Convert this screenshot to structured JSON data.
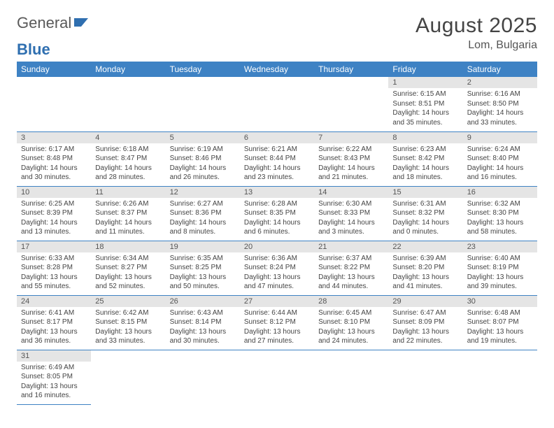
{
  "logo": {
    "part1": "General",
    "part2": "Blue"
  },
  "title": "August 2025",
  "location": "Lom, Bulgaria",
  "colors": {
    "header_bg": "#3e82c4",
    "daynum_bg": "#e5e5e5",
    "border": "#3e82c4"
  },
  "weekdays": [
    "Sunday",
    "Monday",
    "Tuesday",
    "Wednesday",
    "Thursday",
    "Friday",
    "Saturday"
  ],
  "weeks": [
    [
      null,
      null,
      null,
      null,
      null,
      {
        "n": "1",
        "sr": "Sunrise: 6:15 AM",
        "ss": "Sunset: 8:51 PM",
        "dl": "Daylight: 14 hours and 35 minutes."
      },
      {
        "n": "2",
        "sr": "Sunrise: 6:16 AM",
        "ss": "Sunset: 8:50 PM",
        "dl": "Daylight: 14 hours and 33 minutes."
      }
    ],
    [
      {
        "n": "3",
        "sr": "Sunrise: 6:17 AM",
        "ss": "Sunset: 8:48 PM",
        "dl": "Daylight: 14 hours and 30 minutes."
      },
      {
        "n": "4",
        "sr": "Sunrise: 6:18 AM",
        "ss": "Sunset: 8:47 PM",
        "dl": "Daylight: 14 hours and 28 minutes."
      },
      {
        "n": "5",
        "sr": "Sunrise: 6:19 AM",
        "ss": "Sunset: 8:46 PM",
        "dl": "Daylight: 14 hours and 26 minutes."
      },
      {
        "n": "6",
        "sr": "Sunrise: 6:21 AM",
        "ss": "Sunset: 8:44 PM",
        "dl": "Daylight: 14 hours and 23 minutes."
      },
      {
        "n": "7",
        "sr": "Sunrise: 6:22 AM",
        "ss": "Sunset: 8:43 PM",
        "dl": "Daylight: 14 hours and 21 minutes."
      },
      {
        "n": "8",
        "sr": "Sunrise: 6:23 AM",
        "ss": "Sunset: 8:42 PM",
        "dl": "Daylight: 14 hours and 18 minutes."
      },
      {
        "n": "9",
        "sr": "Sunrise: 6:24 AM",
        "ss": "Sunset: 8:40 PM",
        "dl": "Daylight: 14 hours and 16 minutes."
      }
    ],
    [
      {
        "n": "10",
        "sr": "Sunrise: 6:25 AM",
        "ss": "Sunset: 8:39 PM",
        "dl": "Daylight: 14 hours and 13 minutes."
      },
      {
        "n": "11",
        "sr": "Sunrise: 6:26 AM",
        "ss": "Sunset: 8:37 PM",
        "dl": "Daylight: 14 hours and 11 minutes."
      },
      {
        "n": "12",
        "sr": "Sunrise: 6:27 AM",
        "ss": "Sunset: 8:36 PM",
        "dl": "Daylight: 14 hours and 8 minutes."
      },
      {
        "n": "13",
        "sr": "Sunrise: 6:28 AM",
        "ss": "Sunset: 8:35 PM",
        "dl": "Daylight: 14 hours and 6 minutes."
      },
      {
        "n": "14",
        "sr": "Sunrise: 6:30 AM",
        "ss": "Sunset: 8:33 PM",
        "dl": "Daylight: 14 hours and 3 minutes."
      },
      {
        "n": "15",
        "sr": "Sunrise: 6:31 AM",
        "ss": "Sunset: 8:32 PM",
        "dl": "Daylight: 14 hours and 0 minutes."
      },
      {
        "n": "16",
        "sr": "Sunrise: 6:32 AM",
        "ss": "Sunset: 8:30 PM",
        "dl": "Daylight: 13 hours and 58 minutes."
      }
    ],
    [
      {
        "n": "17",
        "sr": "Sunrise: 6:33 AM",
        "ss": "Sunset: 8:28 PM",
        "dl": "Daylight: 13 hours and 55 minutes."
      },
      {
        "n": "18",
        "sr": "Sunrise: 6:34 AM",
        "ss": "Sunset: 8:27 PM",
        "dl": "Daylight: 13 hours and 52 minutes."
      },
      {
        "n": "19",
        "sr": "Sunrise: 6:35 AM",
        "ss": "Sunset: 8:25 PM",
        "dl": "Daylight: 13 hours and 50 minutes."
      },
      {
        "n": "20",
        "sr": "Sunrise: 6:36 AM",
        "ss": "Sunset: 8:24 PM",
        "dl": "Daylight: 13 hours and 47 minutes."
      },
      {
        "n": "21",
        "sr": "Sunrise: 6:37 AM",
        "ss": "Sunset: 8:22 PM",
        "dl": "Daylight: 13 hours and 44 minutes."
      },
      {
        "n": "22",
        "sr": "Sunrise: 6:39 AM",
        "ss": "Sunset: 8:20 PM",
        "dl": "Daylight: 13 hours and 41 minutes."
      },
      {
        "n": "23",
        "sr": "Sunrise: 6:40 AM",
        "ss": "Sunset: 8:19 PM",
        "dl": "Daylight: 13 hours and 39 minutes."
      }
    ],
    [
      {
        "n": "24",
        "sr": "Sunrise: 6:41 AM",
        "ss": "Sunset: 8:17 PM",
        "dl": "Daylight: 13 hours and 36 minutes."
      },
      {
        "n": "25",
        "sr": "Sunrise: 6:42 AM",
        "ss": "Sunset: 8:15 PM",
        "dl": "Daylight: 13 hours and 33 minutes."
      },
      {
        "n": "26",
        "sr": "Sunrise: 6:43 AM",
        "ss": "Sunset: 8:14 PM",
        "dl": "Daylight: 13 hours and 30 minutes."
      },
      {
        "n": "27",
        "sr": "Sunrise: 6:44 AM",
        "ss": "Sunset: 8:12 PM",
        "dl": "Daylight: 13 hours and 27 minutes."
      },
      {
        "n": "28",
        "sr": "Sunrise: 6:45 AM",
        "ss": "Sunset: 8:10 PM",
        "dl": "Daylight: 13 hours and 24 minutes."
      },
      {
        "n": "29",
        "sr": "Sunrise: 6:47 AM",
        "ss": "Sunset: 8:09 PM",
        "dl": "Daylight: 13 hours and 22 minutes."
      },
      {
        "n": "30",
        "sr": "Sunrise: 6:48 AM",
        "ss": "Sunset: 8:07 PM",
        "dl": "Daylight: 13 hours and 19 minutes."
      }
    ],
    [
      {
        "n": "31",
        "sr": "Sunrise: 6:49 AM",
        "ss": "Sunset: 8:05 PM",
        "dl": "Daylight: 13 hours and 16 minutes."
      },
      null,
      null,
      null,
      null,
      null,
      null
    ]
  ]
}
